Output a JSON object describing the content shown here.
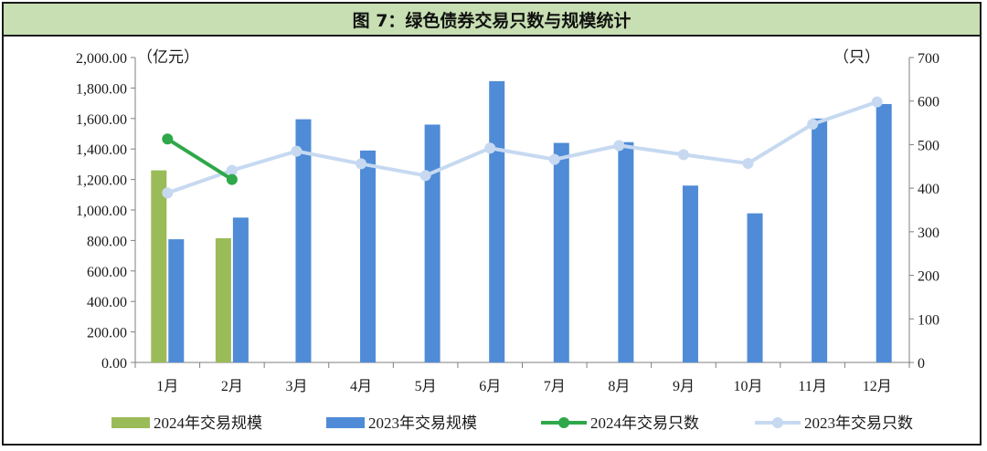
{
  "title": "图 7：绿色债券交易只数与规模统计",
  "chart_data": {
    "type": "bar+line",
    "categories": [
      "1月",
      "2月",
      "3月",
      "4月",
      "5月",
      "6月",
      "7月",
      "8月",
      "9月",
      "10月",
      "11月",
      "12月"
    ],
    "left_axis": {
      "unit": "（亿元）",
      "ylim": [
        0,
        2000
      ],
      "ticks": [
        "0.00",
        "200.00",
        "400.00",
        "600.00",
        "800.00",
        "1,000.00",
        "1,200.00",
        "1,400.00",
        "1,600.00",
        "1,800.00",
        "2,000.00"
      ]
    },
    "right_axis": {
      "unit": "（只）",
      "ylim": [
        0,
        700
      ],
      "ticks": [
        "0",
        "100",
        "200",
        "300",
        "400",
        "500",
        "600",
        "700"
      ]
    },
    "series": [
      {
        "name": "2024年交易规模",
        "kind": "bar",
        "axis": "left",
        "color": "#9bbb59",
        "values": [
          1260,
          815,
          null,
          null,
          null,
          null,
          null,
          null,
          null,
          null,
          null,
          null
        ]
      },
      {
        "name": "2023年交易规模",
        "kind": "bar",
        "axis": "left",
        "color": "#4f8bd6",
        "values": [
          808,
          950,
          1595,
          1390,
          1560,
          1845,
          1440,
          1445,
          1160,
          978,
          1600,
          1695
        ]
      },
      {
        "name": "2024年交易只数",
        "kind": "line",
        "axis": "right",
        "color": "#2ea84a",
        "values": [
          513,
          420,
          null,
          null,
          null,
          null,
          null,
          null,
          null,
          null,
          null,
          null
        ]
      },
      {
        "name": "2023年交易只数",
        "kind": "line",
        "axis": "right",
        "color": "#c6d9f1",
        "values": [
          389,
          441,
          485,
          456,
          429,
          492,
          466,
          498,
          477,
          457,
          547,
          598
        ]
      }
    ],
    "legend_position": "bottom",
    "grid": false
  }
}
